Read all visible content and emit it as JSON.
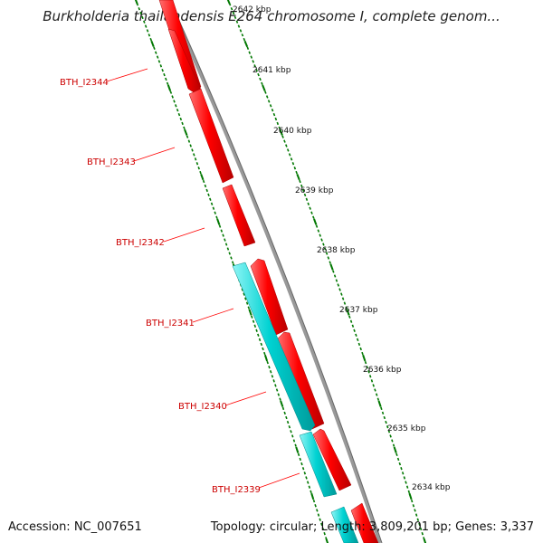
{
  "title": "Burkholderia thailandensis E264 chromosome I, complete genom...",
  "footer": {
    "accession": "Accession: NC_007651",
    "summary": "Topology: circular; Length: 3,809,201 bp; Genes: 3,337"
  },
  "colors": {
    "forward_gene": "#ff0000",
    "reverse_gene": "#00cccc",
    "backbone": "#888888",
    "tick": "#007700",
    "label": "#cc0000"
  },
  "kbp_labels": [
    "2642 kbp",
    "2641 kbp",
    "2640 kbp",
    "2639 kbp",
    "2638 kbp",
    "2637 kbp",
    "2636 kbp",
    "2635 kbp",
    "2634 kbp"
  ],
  "gene_labels": [
    "BTH_I2344",
    "BTH_I2343",
    "BTH_I2342",
    "BTH_I2341",
    "BTH_I2340",
    "BTH_I2339"
  ]
}
